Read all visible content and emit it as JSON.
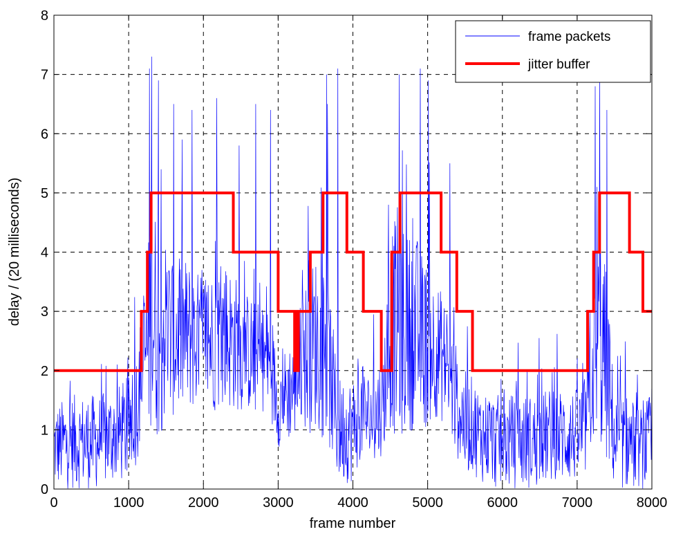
{
  "chart_data": {
    "type": "line",
    "title": "",
    "xlabel": "frame number",
    "ylabel": "delay / (20 milliseconds)",
    "xlim": [
      0,
      8000
    ],
    "ylim": [
      0,
      8
    ],
    "xticks": [
      "0",
      "1000",
      "2000",
      "3000",
      "4000",
      "5000",
      "6000",
      "7000",
      "8000"
    ],
    "yticks": [
      "0",
      "1",
      "2",
      "3",
      "4",
      "5",
      "6",
      "7",
      "8"
    ],
    "grid": true,
    "legend_position": "top-right",
    "colors": {
      "frame_packets": "#0000ff",
      "jitter_buffer": "#ff0000"
    },
    "series": [
      {
        "name": "frame packets",
        "style": "thin-noisy-line",
        "x": [
          0,
          200,
          400,
          600,
          800,
          1000,
          1100,
          1200,
          1300,
          1400,
          1500,
          1600,
          1700,
          1800,
          1900,
          2000,
          2100,
          2200,
          2300,
          2400,
          2500,
          2600,
          2700,
          2800,
          2900,
          3000,
          3100,
          3200,
          3300,
          3400,
          3500,
          3600,
          3700,
          3800,
          3900,
          4000,
          4100,
          4200,
          4300,
          4400,
          4500,
          4600,
          4700,
          4800,
          4900,
          5000,
          5100,
          5200,
          5300,
          5400,
          5500,
          5600,
          5700,
          5800,
          5900,
          6000,
          6100,
          6200,
          6300,
          6400,
          6500,
          6600,
          6700,
          6800,
          6900,
          7000,
          7100,
          7200,
          7300,
          7400,
          7500,
          7600,
          7700,
          7800,
          7900,
          8000
        ],
        "base": [
          0.7,
          0.8,
          0.8,
          0.8,
          0.9,
          1.0,
          1.4,
          2.1,
          2.8,
          2.8,
          2.7,
          2.6,
          2.6,
          2.6,
          2.5,
          2.5,
          2.5,
          2.6,
          2.6,
          2.5,
          2.4,
          2.3,
          2.2,
          2.2,
          2.1,
          1.4,
          1.6,
          1.7,
          2.1,
          2.3,
          2.5,
          2.3,
          1.9,
          1.0,
          1.0,
          1.0,
          1.3,
          1.2,
          1.2,
          1.5,
          2.6,
          2.8,
          2.6,
          2.7,
          2.6,
          2.4,
          2.4,
          2.2,
          1.9,
          1.4,
          1.1,
          1.1,
          0.9,
          0.9,
          0.8,
          0.8,
          0.8,
          0.8,
          0.8,
          0.8,
          0.8,
          0.9,
          0.9,
          0.9,
          0.9,
          0.9,
          1.0,
          1.9,
          2.6,
          2.0,
          0.8,
          0.8,
          0.8,
          0.7,
          0.7,
          0.9
        ],
        "spread": [
          0.7,
          0.8,
          0.8,
          0.8,
          0.8,
          0.9,
          1.0,
          1.2,
          2.0,
          2.0,
          1.6,
          1.4,
          1.4,
          1.3,
          1.2,
          1.2,
          1.2,
          1.3,
          1.3,
          1.2,
          1.1,
          1.0,
          1.0,
          0.9,
          0.9,
          0.7,
          0.8,
          0.9,
          1.1,
          1.4,
          1.5,
          1.5,
          1.3,
          0.9,
          0.9,
          0.9,
          0.8,
          0.8,
          0.8,
          0.9,
          1.6,
          2.0,
          1.7,
          1.7,
          1.6,
          1.4,
          1.2,
          1.1,
          1.1,
          0.9,
          0.9,
          0.8,
          0.8,
          0.8,
          0.8,
          0.8,
          0.8,
          0.8,
          0.8,
          0.8,
          0.8,
          0.8,
          0.8,
          0.8,
          0.8,
          0.8,
          0.9,
          1.2,
          2.0,
          1.6,
          0.8,
          0.8,
          0.8,
          0.7,
          0.7,
          0.8
        ],
        "peaks": [
          [
            1310,
            7.3
          ],
          [
            1280,
            7.1
          ],
          [
            1400,
            6.9
          ],
          [
            2180,
            6.6
          ],
          [
            2700,
            6.5
          ],
          [
            3800,
            7.1
          ],
          [
            3650,
            7.0
          ],
          [
            4620,
            7.0
          ],
          [
            4900,
            7.1
          ],
          [
            5010,
            6.9
          ],
          [
            7300,
            7.0
          ],
          [
            7240,
            6.8
          ],
          [
            1600,
            6.5
          ],
          [
            2900,
            6.4
          ],
          [
            3660,
            6.5
          ],
          [
            5300,
            5.5
          ],
          [
            1850,
            6.4
          ],
          [
            2480,
            5.8
          ],
          [
            7400,
            6.4
          ]
        ]
      },
      {
        "name": "jitter buffer",
        "style": "thick-step-line",
        "x": [
          0,
          1170,
          1170,
          1250,
          1250,
          1300,
          1300,
          2400,
          2400,
          3000,
          3000,
          3220,
          3220,
          3250,
          3250,
          3260,
          3260,
          3270,
          3270,
          3430,
          3430,
          3600,
          3600,
          3920,
          3920,
          4140,
          4140,
          4380,
          4380,
          4520,
          4520,
          4630,
          4630,
          5180,
          5180,
          5390,
          5390,
          5600,
          5600,
          7140,
          7140,
          7220,
          7220,
          7300,
          7300,
          7700,
          7700,
          7880,
          7880,
          8000
        ],
        "y": [
          2,
          2,
          3,
          3,
          4,
          4,
          5,
          5,
          4,
          4,
          3,
          3,
          2,
          2,
          3,
          3,
          2,
          2,
          3,
          3,
          4,
          4,
          5,
          5,
          4,
          4,
          3,
          3,
          2,
          2,
          4,
          4,
          5,
          5,
          4,
          4,
          3,
          3,
          2,
          2,
          3,
          3,
          4,
          4,
          5,
          5,
          4,
          4,
          3,
          3
        ]
      }
    ]
  }
}
